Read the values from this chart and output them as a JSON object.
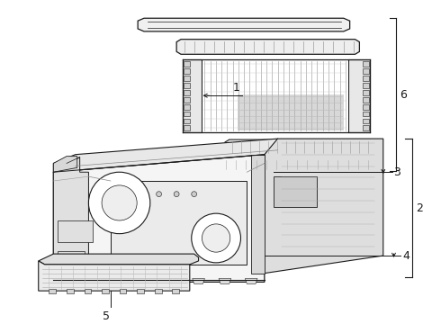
{
  "bg_color": "#ffffff",
  "line_color": "#1a1a1a",
  "lw": 0.8,
  "fig_w": 4.9,
  "fig_h": 3.6,
  "dpi": 100
}
